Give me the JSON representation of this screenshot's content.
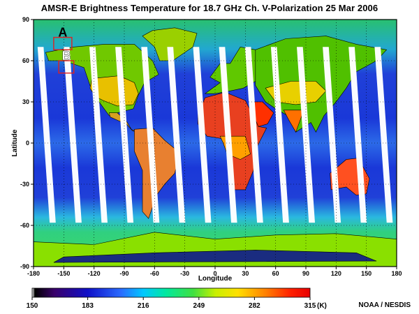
{
  "title": "AMSR-E Brightness Temperature for 18.7 GHz Ch. V-Polarization  25 Mar 2006",
  "map": {
    "lon_range": [
      -180,
      180
    ],
    "lat_range": [
      -90,
      90
    ],
    "x_ticks": [
      -180,
      -150,
      -120,
      -90,
      -60,
      -30,
      0,
      30,
      60,
      90,
      120,
      150,
      180
    ],
    "y_ticks": [
      90,
      60,
      30,
      0,
      -30,
      -60,
      -90
    ],
    "x_axis_label": "Longitude",
    "y_axis_label": "Latitude",
    "grid": "dotted",
    "swath_gap_count": 14
  },
  "regions": [
    {
      "label": "A",
      "lon": [
        -160,
        -142
      ],
      "lat": [
        68,
        77
      ],
      "color": "#e02020"
    },
    {
      "label": "B",
      "lon": [
        -155,
        -140
      ],
      "lat": [
        51,
        60
      ],
      "color": "#e02020"
    }
  ],
  "colorbar": {
    "tick_labels": [
      "150",
      "183",
      "216",
      "249",
      "282",
      "315"
    ],
    "unit": "(K)",
    "min": 150,
    "max": 315
  },
  "credit": "NOAA / NESDIS"
}
